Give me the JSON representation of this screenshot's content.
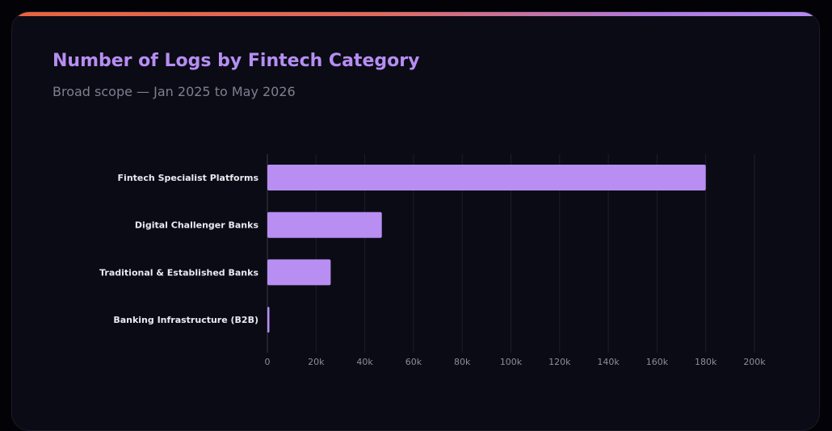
{
  "header": {
    "title": "Number of Logs by Fintech Category",
    "subtitle": "Broad scope — Jan 2025 to May 2026"
  },
  "colors": {
    "accent_start": "#e7643f",
    "accent_end": "#b48cf2",
    "bar": "#b88ef3",
    "title": "#b68ef3"
  },
  "chart_data": {
    "type": "bar",
    "orientation": "horizontal",
    "categories": [
      "Fintech Specialist Platforms",
      "Digital Challenger Banks",
      "Traditional & Established Banks",
      "Banking Infrastructure (B2B)"
    ],
    "values": [
      180000,
      47000,
      26000,
      600
    ],
    "xlim": [
      0,
      200000
    ],
    "x_ticks": [
      0,
      20000,
      40000,
      60000,
      80000,
      100000,
      120000,
      140000,
      160000,
      180000,
      200000
    ],
    "x_tick_labels": [
      "0",
      "20k",
      "40k",
      "60k",
      "80k",
      "100k",
      "120k",
      "140k",
      "160k",
      "180k",
      "200k"
    ],
    "grid": "vertical",
    "legend": "none"
  }
}
